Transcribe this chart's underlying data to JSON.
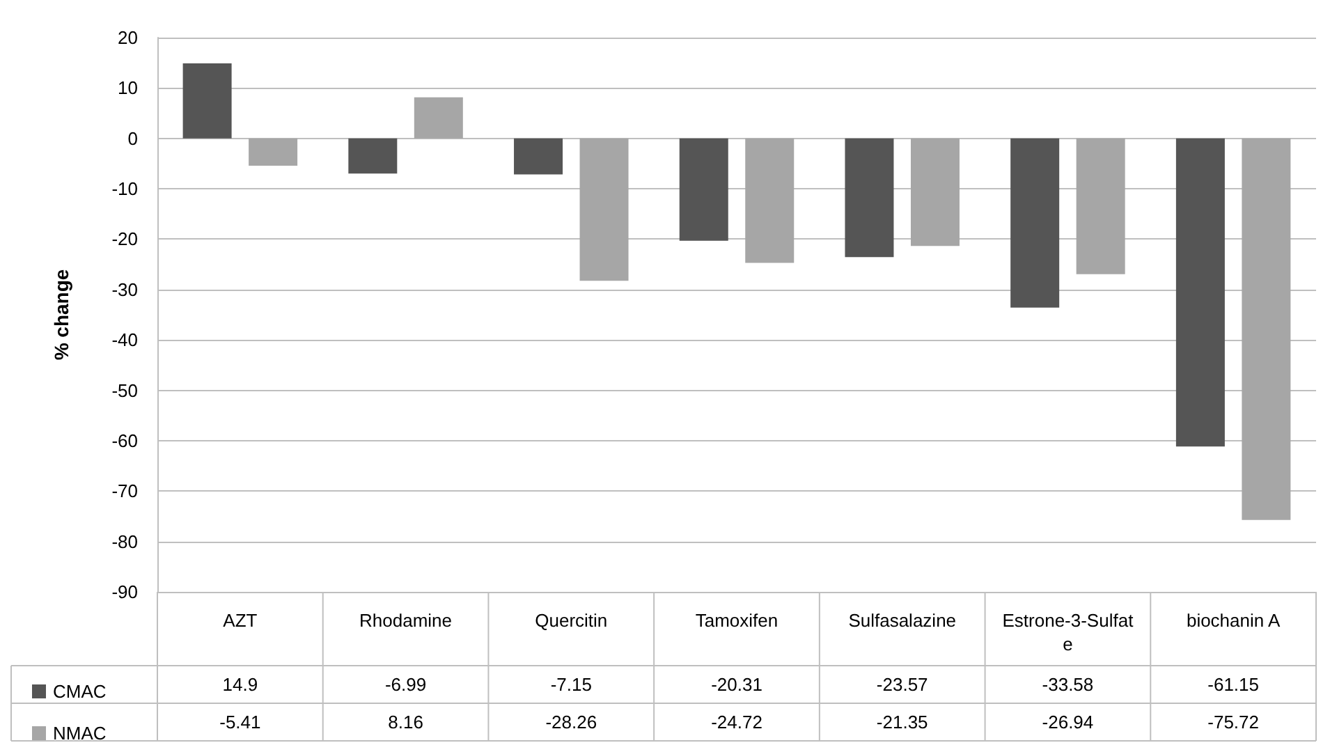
{
  "chart_data": {
    "type": "bar",
    "ylabel": "% change",
    "categories": [
      "AZT",
      "Rhodamine",
      "Quercitin",
      "Tamoxifen",
      "Sulfasalazine",
      "Estrone-3-Sulfate",
      "biochanin A"
    ],
    "series": [
      {
        "name": "CMAC",
        "color": "#555555",
        "values": [
          14.9,
          -6.99,
          -7.15,
          -20.31,
          -23.57,
          -33.58,
          -61.15
        ]
      },
      {
        "name": "NMAC",
        "color": "#a6a6a6",
        "values": [
          -5.41,
          8.16,
          -28.26,
          -24.72,
          -21.35,
          -26.94,
          -75.72
        ]
      }
    ],
    "ylim": [
      -90,
      20
    ],
    "yticks": [
      -90,
      -80,
      -70,
      -60,
      -50,
      -40,
      -30,
      -20,
      -10,
      0,
      10,
      20
    ],
    "grid": "y",
    "legend": "bottom left",
    "data_labels": true
  }
}
